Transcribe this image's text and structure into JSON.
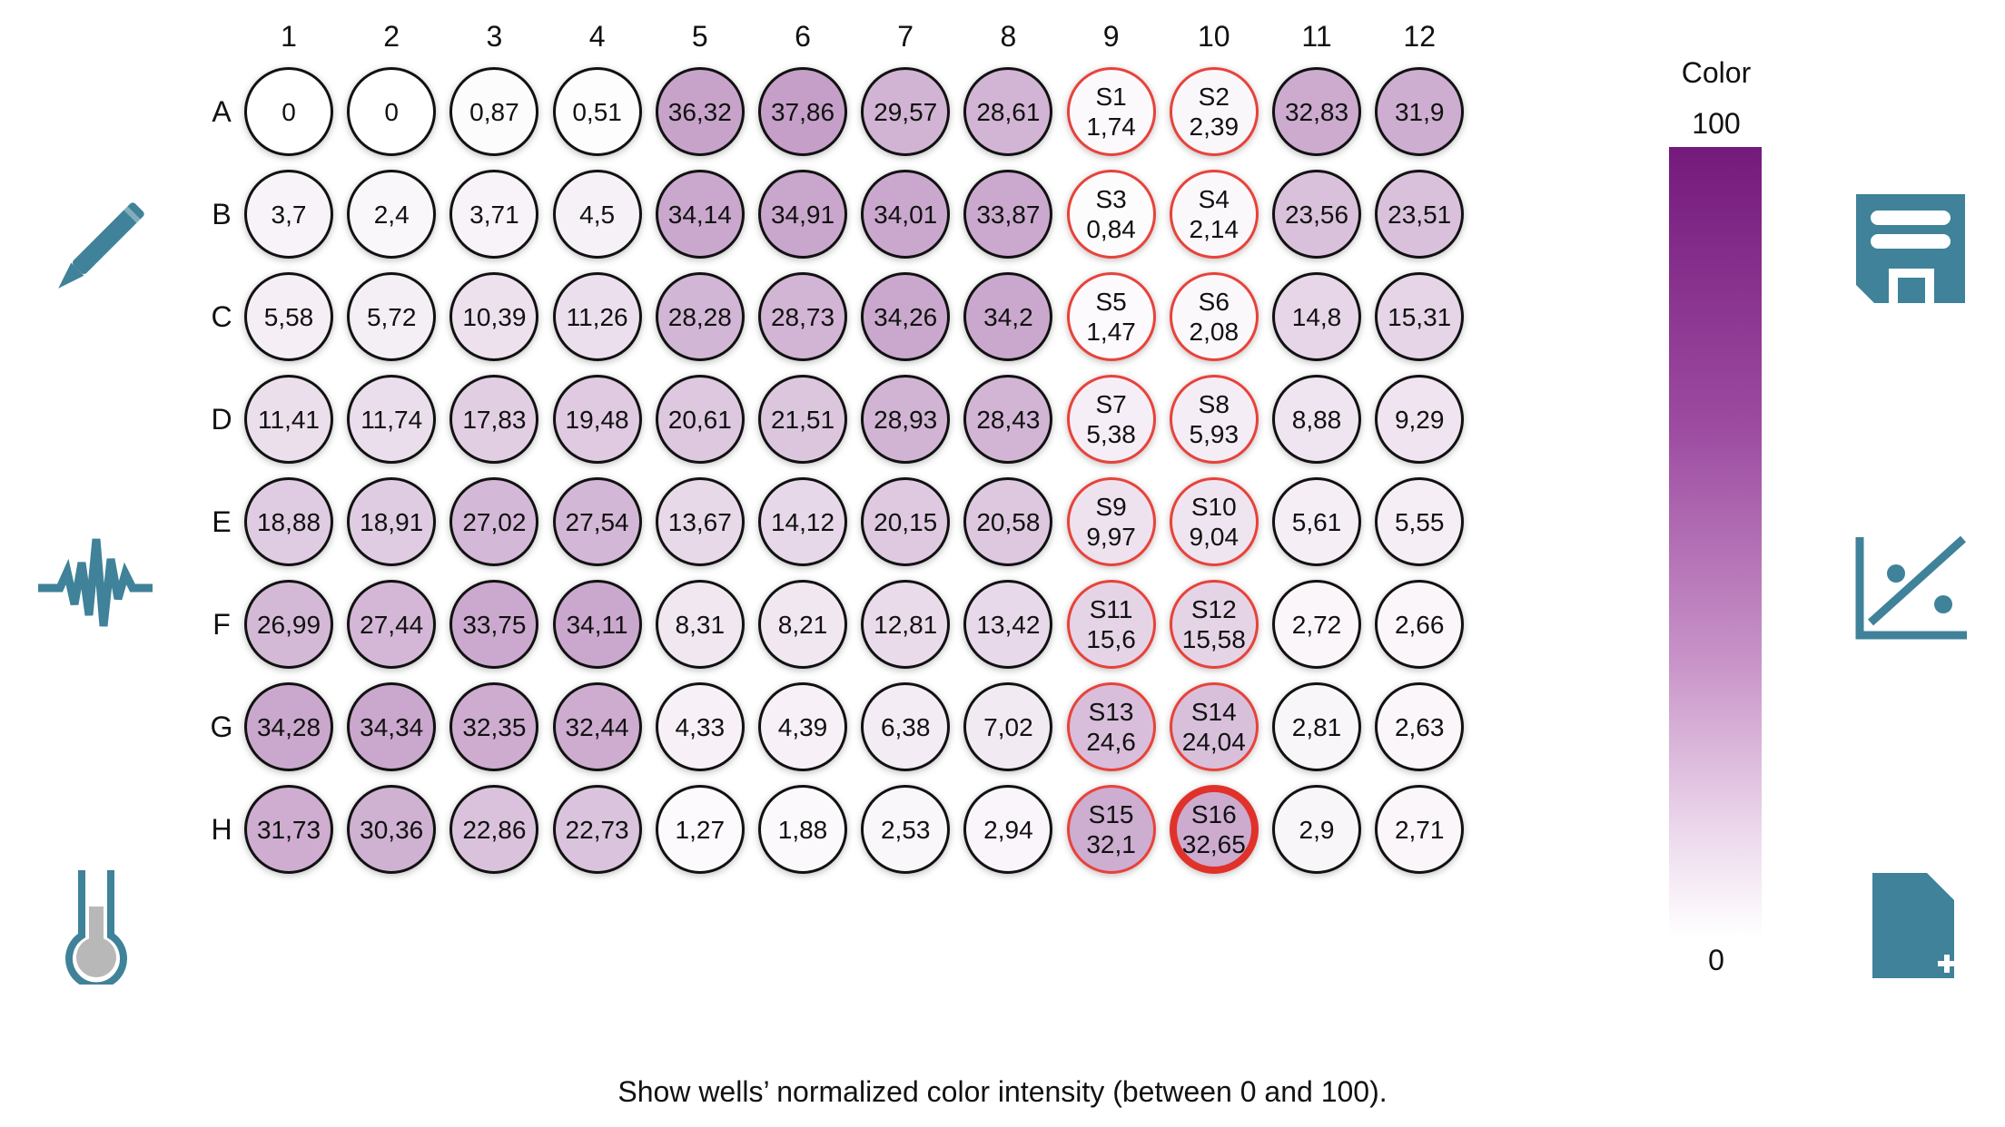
{
  "plate": {
    "columns": [
      "1",
      "2",
      "3",
      "4",
      "5",
      "6",
      "7",
      "8",
      "9",
      "10",
      "11",
      "12"
    ],
    "rows": [
      {
        "label": "A",
        "wells": [
          {
            "value": "0",
            "intensity": 0
          },
          {
            "value": "0",
            "intensity": 0
          },
          {
            "value": "0,87",
            "intensity": 0.87
          },
          {
            "value": "0,51",
            "intensity": 0.51
          },
          {
            "value": "36,32",
            "intensity": 36.32
          },
          {
            "value": "37,86",
            "intensity": 37.86
          },
          {
            "value": "29,57",
            "intensity": 29.57
          },
          {
            "value": "28,61",
            "intensity": 28.61
          },
          {
            "name": "S1",
            "value": "1,74",
            "intensity": 1.74,
            "standard": true
          },
          {
            "name": "S2",
            "value": "2,39",
            "intensity": 2.39,
            "standard": true
          },
          {
            "value": "32,83",
            "intensity": 32.83
          },
          {
            "value": "31,9",
            "intensity": 31.9
          }
        ]
      },
      {
        "label": "B",
        "wells": [
          {
            "value": "3,7",
            "intensity": 3.7
          },
          {
            "value": "2,4",
            "intensity": 2.4
          },
          {
            "value": "3,71",
            "intensity": 3.71
          },
          {
            "value": "4,5",
            "intensity": 4.5
          },
          {
            "value": "34,14",
            "intensity": 34.14
          },
          {
            "value": "34,91",
            "intensity": 34.91
          },
          {
            "value": "34,01",
            "intensity": 34.01
          },
          {
            "value": "33,87",
            "intensity": 33.87
          },
          {
            "name": "S3",
            "value": "0,84",
            "intensity": 0.84,
            "standard": true
          },
          {
            "name": "S4",
            "value": "2,14",
            "intensity": 2.14,
            "standard": true
          },
          {
            "value": "23,56",
            "intensity": 23.56
          },
          {
            "value": "23,51",
            "intensity": 23.51
          }
        ]
      },
      {
        "label": "C",
        "wells": [
          {
            "value": "5,58",
            "intensity": 5.58
          },
          {
            "value": "5,72",
            "intensity": 5.72
          },
          {
            "value": "10,39",
            "intensity": 10.39
          },
          {
            "value": "11,26",
            "intensity": 11.26
          },
          {
            "value": "28,28",
            "intensity": 28.28
          },
          {
            "value": "28,73",
            "intensity": 28.73
          },
          {
            "value": "34,26",
            "intensity": 34.26
          },
          {
            "value": "34,2",
            "intensity": 34.2
          },
          {
            "name": "S5",
            "value": "1,47",
            "intensity": 1.47,
            "standard": true
          },
          {
            "name": "S6",
            "value": "2,08",
            "intensity": 2.08,
            "standard": true
          },
          {
            "value": "14,8",
            "intensity": 14.8
          },
          {
            "value": "15,31",
            "intensity": 15.31
          }
        ]
      },
      {
        "label": "D",
        "wells": [
          {
            "value": "11,41",
            "intensity": 11.41
          },
          {
            "value": "11,74",
            "intensity": 11.74
          },
          {
            "value": "17,83",
            "intensity": 17.83
          },
          {
            "value": "19,48",
            "intensity": 19.48
          },
          {
            "value": "20,61",
            "intensity": 20.61
          },
          {
            "value": "21,51",
            "intensity": 21.51
          },
          {
            "value": "28,93",
            "intensity": 28.93
          },
          {
            "value": "28,43",
            "intensity": 28.43
          },
          {
            "name": "S7",
            "value": "5,38",
            "intensity": 5.38,
            "standard": true
          },
          {
            "name": "S8",
            "value": "5,93",
            "intensity": 5.93,
            "standard": true
          },
          {
            "value": "8,88",
            "intensity": 8.88
          },
          {
            "value": "9,29",
            "intensity": 9.29
          }
        ]
      },
      {
        "label": "E",
        "wells": [
          {
            "value": "18,88",
            "intensity": 18.88
          },
          {
            "value": "18,91",
            "intensity": 18.91
          },
          {
            "value": "27,02",
            "intensity": 27.02
          },
          {
            "value": "27,54",
            "intensity": 27.54
          },
          {
            "value": "13,67",
            "intensity": 13.67
          },
          {
            "value": "14,12",
            "intensity": 14.12
          },
          {
            "value": "20,15",
            "intensity": 20.15
          },
          {
            "value": "20,58",
            "intensity": 20.58
          },
          {
            "name": "S9",
            "value": "9,97",
            "intensity": 9.97,
            "standard": true
          },
          {
            "name": "S10",
            "value": "9,04",
            "intensity": 9.04,
            "standard": true
          },
          {
            "value": "5,61",
            "intensity": 5.61
          },
          {
            "value": "5,55",
            "intensity": 5.55
          }
        ]
      },
      {
        "label": "F",
        "wells": [
          {
            "value": "26,99",
            "intensity": 26.99
          },
          {
            "value": "27,44",
            "intensity": 27.44
          },
          {
            "value": "33,75",
            "intensity": 33.75
          },
          {
            "value": "34,11",
            "intensity": 34.11
          },
          {
            "value": "8,31",
            "intensity": 8.31
          },
          {
            "value": "8,21",
            "intensity": 8.21
          },
          {
            "value": "12,81",
            "intensity": 12.81
          },
          {
            "value": "13,42",
            "intensity": 13.42
          },
          {
            "name": "S11",
            "value": "15,6",
            "intensity": 15.6,
            "standard": true
          },
          {
            "name": "S12",
            "value": "15,58",
            "intensity": 15.58,
            "standard": true
          },
          {
            "value": "2,72",
            "intensity": 2.72
          },
          {
            "value": "2,66",
            "intensity": 2.66
          }
        ]
      },
      {
        "label": "G",
        "wells": [
          {
            "value": "34,28",
            "intensity": 34.28
          },
          {
            "value": "34,34",
            "intensity": 34.34
          },
          {
            "value": "32,35",
            "intensity": 32.35
          },
          {
            "value": "32,44",
            "intensity": 32.44
          },
          {
            "value": "4,33",
            "intensity": 4.33
          },
          {
            "value": "4,39",
            "intensity": 4.39
          },
          {
            "value": "6,38",
            "intensity": 6.38
          },
          {
            "value": "7,02",
            "intensity": 7.02
          },
          {
            "name": "S13",
            "value": "24,6",
            "intensity": 24.6,
            "standard": true
          },
          {
            "name": "S14",
            "value": "24,04",
            "intensity": 24.04,
            "standard": true
          },
          {
            "value": "2,81",
            "intensity": 2.81
          },
          {
            "value": "2,63",
            "intensity": 2.63
          }
        ]
      },
      {
        "label": "H",
        "wells": [
          {
            "value": "31,73",
            "intensity": 31.73
          },
          {
            "value": "30,36",
            "intensity": 30.36
          },
          {
            "value": "22,86",
            "intensity": 22.86
          },
          {
            "value": "22,73",
            "intensity": 22.73
          },
          {
            "value": "1,27",
            "intensity": 1.27
          },
          {
            "value": "1,88",
            "intensity": 1.88
          },
          {
            "value": "2,53",
            "intensity": 2.53
          },
          {
            "value": "2,94",
            "intensity": 2.94
          },
          {
            "name": "S15",
            "value": "32,1",
            "intensity": 32.1,
            "standard": true
          },
          {
            "name": "S16",
            "value": "32,65",
            "intensity": 32.65,
            "standard": true,
            "selected": true
          },
          {
            "value": "2,9",
            "intensity": 2.9
          },
          {
            "value": "2,71",
            "intensity": 2.71
          }
        ]
      }
    ]
  },
  "legend": {
    "title": "Color",
    "max": "100",
    "min": "0",
    "color_max": "#741a7c",
    "color_min": "#ffffff"
  },
  "left_toolbar": [
    {
      "icon": "pencil-icon"
    },
    {
      "icon": "signal-wave-icon"
    },
    {
      "icon": "thermometer-flask-icon"
    }
  ],
  "right_toolbar": [
    {
      "icon": "save-icon"
    },
    {
      "icon": "standard-curve-icon"
    },
    {
      "icon": "new-file-icon"
    }
  ],
  "colors": {
    "accent": "#3f8299",
    "standard_border": "#e8423a",
    "selected_border": "#e0322a"
  },
  "footer": {
    "text": "Show wells’ normalized color intensity (between 0 and 100)."
  }
}
